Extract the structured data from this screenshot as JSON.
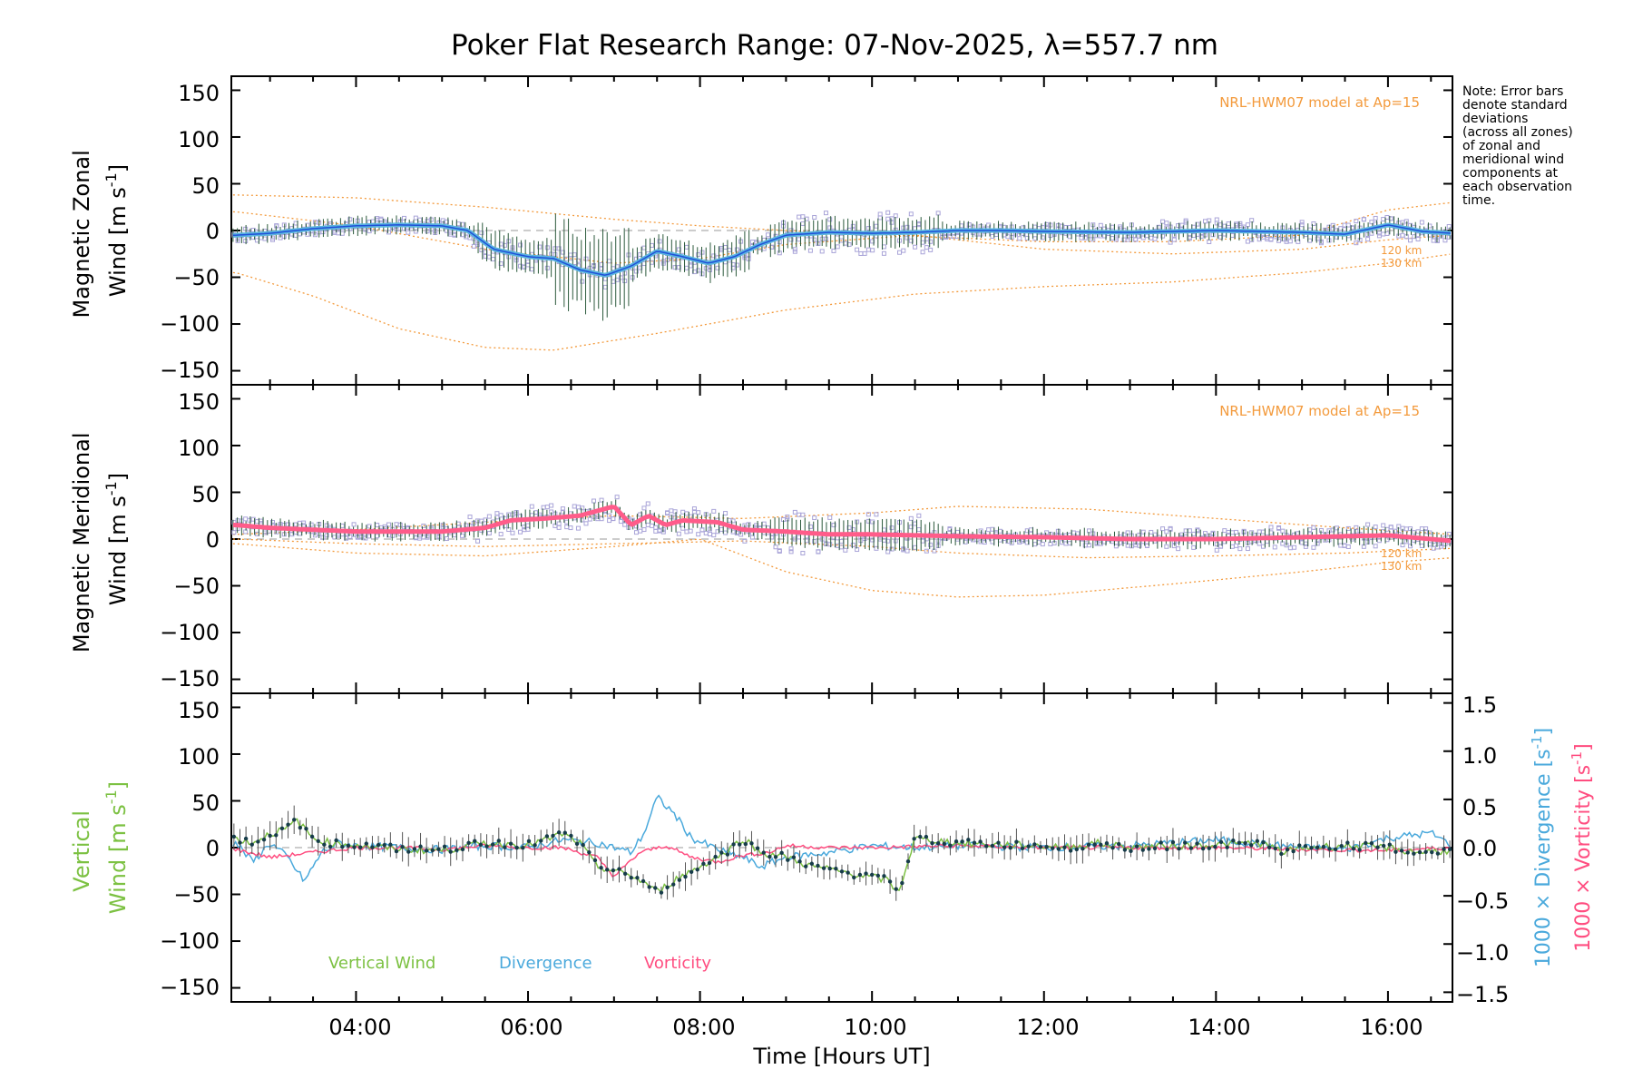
{
  "title": "Poker Flat Research Range: 07-Nov-2025, λ=557.7 nm",
  "note_lines": [
    "Note: Error bars",
    "denote standard",
    "deviations",
    "(across all zones)",
    "of zonal and",
    "meridional wind",
    "components at",
    "each observation",
    "time."
  ],
  "colors": {
    "axis": "#000000",
    "model": "#f39a3c",
    "zonal_mean": "#5ab4e0",
    "zonal_fit": "#1f4fd8",
    "meridional_mean": "#ff5c8a",
    "zone_points": "#a9a4d8",
    "errorbar": "#2c5a3c",
    "vertical": "#7cc142",
    "vertical_pts": "#173c4a",
    "divergence": "#4aa9dc",
    "vorticity": "#ff4d80",
    "zero_line": "#9a9a9a"
  },
  "chart_data": [
    {
      "type": "line",
      "panel": "zonal",
      "ylabel_line1": "Magnetic Zonal",
      "ylabel_line2": "Wind [m s",
      "ylabel_sup": "-1",
      "ylabel_close": "]",
      "xlim": [
        2.55,
        16.75
      ],
      "ylim": [
        -165,
        165
      ],
      "yticks": [
        "150",
        "100",
        "50",
        "0",
        "−50",
        "−100",
        "−150"
      ],
      "ytick_values": [
        150,
        100,
        50,
        0,
        -50,
        -100,
        -150
      ],
      "model_label": "NRL-HWM07 model at Ap=15",
      "altitude_labels": [
        "120 km",
        "130 km"
      ],
      "series": [
        {
          "name": "mean",
          "x": [
            2.6,
            3.0,
            3.5,
            4.0,
            4.5,
            5.0,
            5.3,
            5.6,
            6.0,
            6.3,
            6.6,
            6.9,
            7.2,
            7.5,
            7.8,
            8.1,
            8.4,
            8.7,
            9.0,
            9.5,
            10.0,
            10.5,
            11.0,
            11.5,
            12.0,
            13.0,
            14.0,
            15.0,
            15.5,
            16.0,
            16.4,
            16.75
          ],
          "values": [
            -5,
            -3,
            2,
            5,
            6,
            5,
            0,
            -20,
            -28,
            -30,
            -42,
            -48,
            -38,
            -22,
            -28,
            -35,
            -28,
            -15,
            -5,
            -2,
            -3,
            -2,
            0,
            0,
            -1,
            -2,
            0,
            -2,
            -4,
            6,
            -1,
            -3
          ]
        },
        {
          "name": "model_upper",
          "x": [
            2.6,
            4.0,
            5.5,
            7.0,
            8.0,
            9.0,
            10.5,
            12.0,
            13.5,
            15.0,
            16.0,
            16.75
          ],
          "values": [
            38,
            35,
            25,
            12,
            5,
            0,
            -6,
            -12,
            -12,
            -5,
            22,
            30
          ]
        },
        {
          "name": "model_mid",
          "x": [
            2.6,
            4.0,
            5.5,
            7.0,
            8.0,
            9.0,
            10.5,
            12.0,
            13.5,
            15.0,
            16.0,
            16.75
          ],
          "values": [
            20,
            5,
            -20,
            -35,
            -30,
            -15,
            -5,
            -20,
            -25,
            -20,
            -10,
            -5
          ]
        },
        {
          "name": "model_lower",
          "x": [
            2.6,
            3.5,
            4.5,
            5.5,
            6.3,
            7.5,
            9.0,
            10.5,
            12.0,
            13.5,
            15.0,
            16.0,
            16.75
          ],
          "values": [
            -45,
            -70,
            -105,
            -125,
            -128,
            -110,
            -85,
            -68,
            -60,
            -55,
            -45,
            -35,
            -25
          ]
        }
      ]
    },
    {
      "type": "line",
      "panel": "meridional",
      "ylabel_line1": "Magnetic Meridional",
      "ylabel_line2": "Wind [m s",
      "ylabel_sup": "-1",
      "ylabel_close": "]",
      "xlim": [
        2.55,
        16.75
      ],
      "ylim": [
        -165,
        165
      ],
      "yticks": [
        "150",
        "100",
        "50",
        "0",
        "−50",
        "−100",
        "−150"
      ],
      "ytick_values": [
        150,
        100,
        50,
        0,
        -50,
        -100,
        -150
      ],
      "model_label": "NRL-HWM07 model at Ap=15",
      "altitude_labels": [
        "120 km",
        "130 km"
      ],
      "series": [
        {
          "name": "mean",
          "x": [
            2.6,
            3.0,
            3.5,
            4.0,
            4.5,
            5.0,
            5.5,
            5.8,
            6.2,
            6.6,
            7.0,
            7.2,
            7.4,
            7.6,
            7.8,
            8.2,
            8.5,
            9.0,
            9.5,
            10.0,
            11.0,
            12.0,
            13.0,
            14.0,
            15.0,
            16.0,
            16.75
          ],
          "values": [
            15,
            12,
            10,
            8,
            8,
            8,
            12,
            20,
            22,
            25,
            35,
            15,
            25,
            15,
            20,
            18,
            10,
            8,
            5,
            5,
            3,
            2,
            0,
            0,
            2,
            4,
            -2
          ]
        },
        {
          "name": "model_upper",
          "x": [
            2.6,
            4.0,
            5.5,
            7.0,
            8.5,
            10.0,
            11.0,
            12.5,
            14.0,
            15.5,
            16.75
          ],
          "values": [
            5,
            10,
            18,
            25,
            22,
            28,
            35,
            32,
            22,
            12,
            5
          ]
        },
        {
          "name": "model_mid",
          "x": [
            2.6,
            4.0,
            5.5,
            7.0,
            8.5,
            10.0,
            11.0,
            12.5,
            14.0,
            15.5,
            16.75
          ],
          "values": [
            0,
            -5,
            -8,
            -5,
            -2,
            -8,
            -15,
            -20,
            -18,
            -15,
            -10
          ]
        },
        {
          "name": "model_lower",
          "x": [
            2.6,
            4.0,
            5.5,
            7.0,
            8.0,
            9.0,
            10.0,
            11.0,
            12.0,
            13.5,
            15.0,
            16.0,
            16.75
          ],
          "values": [
            -5,
            -15,
            -18,
            -8,
            0,
            -35,
            -55,
            -62,
            -60,
            -48,
            -35,
            -25,
            -20
          ]
        }
      ]
    },
    {
      "type": "line",
      "panel": "vertical",
      "ylabel_line1": "Vertical",
      "ylabel_line2": "Wind [m s",
      "ylabel_sup": "-1",
      "ylabel_close": "]",
      "xlim": [
        2.55,
        16.75
      ],
      "ylim": [
        -165,
        165
      ],
      "yticks": [
        "150",
        "100",
        "50",
        "0",
        "−50",
        "−100",
        "−150"
      ],
      "ytick_values": [
        150,
        100,
        50,
        0,
        -50,
        -100,
        -150
      ],
      "y2lim": [
        -1.6,
        1.6
      ],
      "y2ticks": [
        "1.5",
        "1.0",
        "0.5",
        "0.0",
        "−0.5",
        "−1.0",
        "−1.5"
      ],
      "y2tick_values": [
        1.5,
        1.0,
        0.5,
        0.0,
        -0.5,
        -1.0,
        -1.5
      ],
      "y2label_div": "1000 × Divergence [s",
      "y2label_vort": "1000 × Vorticity [s",
      "y2label_sup": "-1",
      "y2label_close": "]",
      "legend": [
        "Vertical Wind",
        "Divergence",
        "Vorticity"
      ],
      "xticks": [
        "04:00",
        "06:00",
        "08:00",
        "10:00",
        "12:00",
        "14:00",
        "16:00"
      ],
      "xtick_values": [
        4,
        6,
        8,
        10,
        12,
        14,
        16
      ],
      "xlabel": "Time [Hours UT]",
      "series": [
        {
          "name": "Vertical Wind",
          "x": [
            2.6,
            2.8,
            3.0,
            3.2,
            3.3,
            3.5,
            3.7,
            4.0,
            4.3,
            4.6,
            5.0,
            5.5,
            6.0,
            6.2,
            6.4,
            6.6,
            6.8,
            7.0,
            7.2,
            7.4,
            7.5,
            7.7,
            7.9,
            8.1,
            8.3,
            8.5,
            8.7,
            9.0,
            9.3,
            9.6,
            9.9,
            10.2,
            10.3,
            10.5,
            11.0,
            11.5,
            12.0,
            12.3,
            12.6,
            13.0,
            13.5,
            14.0,
            14.5,
            14.8,
            15.0,
            15.5,
            16.0,
            16.3,
            16.75
          ],
          "values": [
            10,
            5,
            15,
            20,
            30,
            10,
            5,
            3,
            0,
            -2,
            -3,
            5,
            3,
            8,
            15,
            5,
            -20,
            -25,
            -30,
            -40,
            -48,
            -35,
            -25,
            -15,
            -5,
            10,
            -5,
            -10,
            -20,
            -25,
            -30,
            -35,
            -50,
            10,
            5,
            3,
            2,
            0,
            5,
            0,
            2,
            3,
            5,
            -5,
            0,
            2,
            0,
            -5,
            -3
          ]
        },
        {
          "name": "Divergence",
          "x": [
            2.6,
            2.8,
            3.0,
            3.2,
            3.4,
            3.6,
            3.8,
            4.0,
            4.5,
            5.0,
            5.5,
            6.0,
            6.4,
            6.8,
            7.0,
            7.2,
            7.35,
            7.5,
            7.7,
            7.9,
            8.1,
            8.3,
            8.5,
            8.7,
            9.0,
            9.5,
            10.0,
            10.5,
            11.0,
            12.0,
            13.0,
            14.0,
            15.0,
            15.5,
            16.0,
            16.5,
            16.75
          ],
          "values": [
            0.05,
            -0.15,
            0.05,
            -0.1,
            -0.35,
            -0.05,
            0.05,
            0.02,
            0.0,
            -0.02,
            0.02,
            0.0,
            0.08,
            0.05,
            0.0,
            -0.05,
            0.15,
            0.52,
            0.35,
            0.1,
            0.02,
            -0.05,
            -0.1,
            -0.2,
            -0.1,
            -0.05,
            0.02,
            0.0,
            0.02,
            0.0,
            0.02,
            0.08,
            0.0,
            -0.02,
            0.1,
            0.15,
            0.02
          ]
        },
        {
          "name": "Vorticity",
          "x": [
            2.6,
            3.0,
            3.5,
            4.0,
            4.5,
            5.0,
            5.5,
            6.0,
            6.4,
            6.8,
            7.0,
            7.3,
            7.6,
            7.9,
            8.2,
            8.5,
            8.8,
            9.0,
            9.5,
            10.0,
            11.0,
            12.0,
            13.0,
            14.0,
            15.0,
            16.0,
            16.75
          ],
          "values": [
            -0.02,
            -0.1,
            -0.05,
            0.0,
            0.0,
            -0.02,
            0.02,
            0.0,
            0.0,
            -0.1,
            -0.3,
            -0.05,
            0.02,
            -0.1,
            -0.15,
            -0.08,
            -0.05,
            0.02,
            0.0,
            0.0,
            0.02,
            0.0,
            0.0,
            0.0,
            -0.02,
            -0.03,
            0.0
          ]
        }
      ]
    }
  ]
}
